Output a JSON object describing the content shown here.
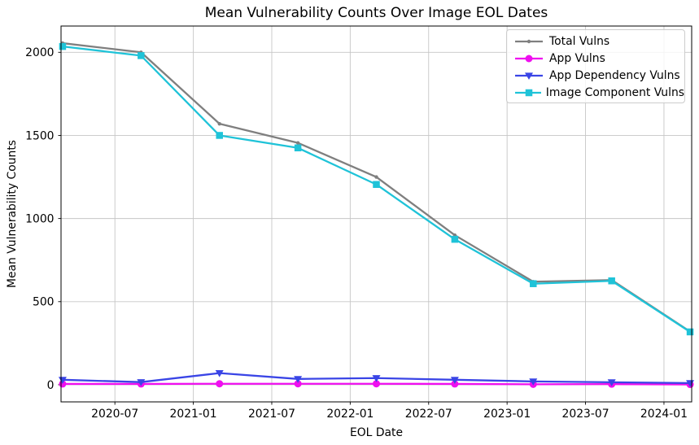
{
  "chart_data": {
    "type": "line",
    "title": "Mean Vulnerability Counts Over Image EOL Dates",
    "xlabel": "EOL Date",
    "ylabel": "Mean Vulnerability Counts",
    "x_dates": [
      "2020-03",
      "2020-09",
      "2021-03",
      "2021-09",
      "2022-03",
      "2022-09",
      "2023-03",
      "2023-09",
      "2024-03"
    ],
    "x_months": [
      0,
      6,
      12,
      18,
      24,
      30,
      36,
      42,
      48
    ],
    "x_ticks": [
      {
        "month": 4,
        "label": "2020-07"
      },
      {
        "month": 10,
        "label": "2021-01"
      },
      {
        "month": 16,
        "label": "2021-07"
      },
      {
        "month": 22,
        "label": "2022-01"
      },
      {
        "month": 28,
        "label": "2022-07"
      },
      {
        "month": 34,
        "label": "2023-01"
      },
      {
        "month": 40,
        "label": "2023-07"
      },
      {
        "month": 46,
        "label": "2024-01"
      }
    ],
    "y_ticks": [
      0,
      500,
      1000,
      1500,
      2000
    ],
    "xlim_months": [
      -0.12,
      48.12
    ],
    "ylim": [
      -103,
      2158
    ],
    "grid": true,
    "legend_position": "upper right",
    "series": [
      {
        "name": "Total Vulns",
        "color": "#7f7f7f",
        "marker": "dot",
        "values": [
          2055,
          2000,
          1570,
          1455,
          1250,
          900,
          620,
          630,
          320
        ]
      },
      {
        "name": "App Vulns",
        "color": "#ef0fef",
        "marker": "circle",
        "values": [
          5,
          5,
          6,
          6,
          6,
          5,
          3,
          4,
          2
        ]
      },
      {
        "name": "App Dependency Vulns",
        "color": "#3a45e6",
        "marker": "triangle-down",
        "values": [
          30,
          16,
          70,
          35,
          40,
          30,
          20,
          15,
          10
        ]
      },
      {
        "name": "Image Component Vulns",
        "color": "#1fc3d8",
        "marker": "square",
        "values": [
          2035,
          1980,
          1500,
          1425,
          1205,
          875,
          608,
          625,
          318
        ]
      }
    ]
  }
}
